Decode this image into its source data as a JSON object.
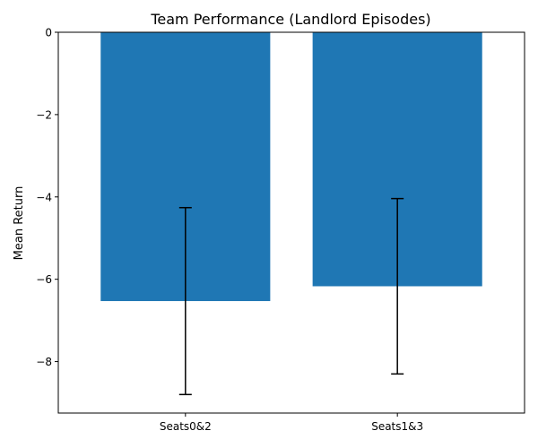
{
  "chart_data": {
    "type": "bar",
    "title": "Team Performance (Landlord Episodes)",
    "xlabel": "",
    "ylabel": "Mean Return",
    "categories": [
      "Seats0&2",
      "Seats1&3"
    ],
    "values": [
      -6.53,
      -6.17
    ],
    "errors": [
      2.27,
      2.13
    ],
    "ylim": [
      -9.25,
      0
    ],
    "yticks": [
      0,
      -2,
      -4,
      -6,
      -8
    ],
    "ytick_labels": [
      "0",
      "−2",
      "−4",
      "−6",
      "−8"
    ],
    "grid": false,
    "legend": "none",
    "bar_color": "#1f77b4",
    "error_color": "#000000"
  }
}
